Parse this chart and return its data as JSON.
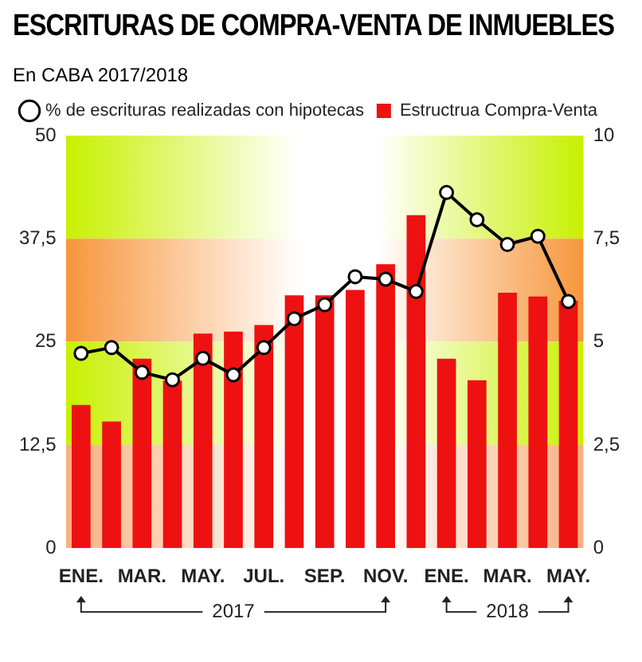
{
  "chart_data": {
    "type": "bar",
    "title": "ESCRITURAS DE COMPRA-VENTA DE INMUEBLES",
    "subtitle": "En CABA 2017/2018",
    "categories": [
      "ENE.",
      null,
      "MAR.",
      null,
      "MAY.",
      null,
      "JUL.",
      null,
      "SEP.",
      null,
      "NOV.",
      null,
      "ENE.",
      null,
      "MAR.",
      null,
      "MAY."
    ],
    "series": [
      {
        "name": "% de escrituras realizadas con hipotecas",
        "type": "line",
        "color": "#000000",
        "values": [
          23.6,
          24.3,
          21.3,
          20.4,
          23.0,
          21.0,
          24.3,
          27.8,
          29.5,
          32.9,
          32.6,
          31.1,
          43.1,
          39.8,
          36.8,
          37.8,
          29.9
        ]
      },
      {
        "name": "Estructrua Compra-Venta",
        "type": "bar",
        "axis": "y2",
        "color": "#ee1111",
        "values": [
          3.47,
          3.07,
          4.59,
          4.06,
          5.2,
          5.25,
          5.41,
          6.13,
          6.13,
          6.26,
          6.88,
          8.07,
          4.59,
          4.07,
          6.19,
          6.1,
          6.0
        ]
      }
    ],
    "ylim": [
      0,
      50
    ],
    "yticks": [
      0,
      {
        "value": 12.5,
        "label": "12,5"
      },
      25,
      {
        "value": 37.5,
        "label": "37,5"
      },
      50
    ],
    "y2lim": [
      0,
      10
    ],
    "y2ticks": [
      0,
      {
        "value": 2.5,
        "label": "2,5"
      },
      5,
      {
        "value": 7.5,
        "label": "7,5"
      },
      10
    ],
    "bands": [
      {
        "axis": "y",
        "from": 37.5,
        "to": 50,
        "color": "#c8f000"
      },
      {
        "axis": "y",
        "from": 25,
        "to": 37.5,
        "color": "#f7963c"
      },
      {
        "axis": "y",
        "from": 12.5,
        "to": 25,
        "color": "#c8f000"
      },
      {
        "axis": "y",
        "from": 0,
        "to": 12.5,
        "color": "#f8b080"
      }
    ],
    "annotations": [
      "2017",
      "2018"
    ],
    "legend": "top",
    "marker": "circle",
    "line_style": "solid",
    "grid": false
  }
}
